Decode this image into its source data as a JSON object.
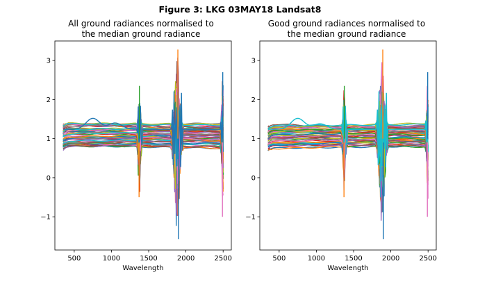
{
  "figure": {
    "title": "Figure 3: LKG 03MAY18  Landsat8"
  },
  "chart_data": [
    {
      "type": "line",
      "title": "All ground radiances normalised to\nthe median ground radiance",
      "xlabel": "Wavelength",
      "ylabel": "",
      "xlim": [
        240,
        2610
      ],
      "ylim": [
        -1.85,
        3.5
      ],
      "xticks": [
        500,
        1000,
        1500,
        2000,
        2500
      ],
      "yticks": [
        -1,
        0,
        1,
        2,
        3
      ],
      "grid": false,
      "legend": "none",
      "series_count": 60,
      "series_colors": [
        "#1f77b4",
        "#ff7f0e",
        "#2ca02c",
        "#d62728",
        "#9467bd",
        "#8c564b",
        "#e377c2",
        "#7f7f7f",
        "#bcbd22",
        "#17becf"
      ],
      "x_range": [
        350,
        2500
      ],
      "level_range": [
        0.78,
        1.38
      ],
      "highlight_bumps": [
        {
          "x": 750,
          "peak": 1.52,
          "color": "#1f77b4"
        },
        {
          "x": 1050,
          "peak": 1.4,
          "color": "#1f77b4"
        }
      ],
      "absorption_bands": [
        {
          "x": 1375,
          "spike_max": 2.35,
          "spike_min": -0.5
        },
        {
          "x": 1880,
          "spike_max": 3.28,
          "spike_min": -1.57
        },
        {
          "x": 2495,
          "spike_max": 2.7,
          "spike_min": -1.0
        }
      ]
    },
    {
      "type": "line",
      "title": "Good ground radiances normalised to\nthe median ground radiance",
      "xlabel": "Wavelength",
      "ylabel": "",
      "xlim": [
        240,
        2610
      ],
      "ylim": [
        -1.85,
        3.5
      ],
      "xticks": [
        500,
        1000,
        1500,
        2000,
        2500
      ],
      "yticks": [
        -1,
        0,
        1,
        2,
        3
      ],
      "grid": false,
      "legend": "none",
      "series_count": 50,
      "series_colors": [
        "#1f77b4",
        "#ff7f0e",
        "#2ca02c",
        "#d62728",
        "#9467bd",
        "#8c564b",
        "#e377c2",
        "#7f7f7f",
        "#bcbd22",
        "#17becf"
      ],
      "x_range": [
        350,
        2500
      ],
      "level_range": [
        0.8,
        1.35
      ],
      "highlight_bumps": [
        {
          "x": 750,
          "peak": 1.52,
          "color": "#17becf"
        },
        {
          "x": 1050,
          "peak": 1.38,
          "color": "#17becf"
        }
      ],
      "absorption_bands": [
        {
          "x": 1375,
          "spike_max": 2.35,
          "spike_min": -0.5
        },
        {
          "x": 1880,
          "spike_max": 3.28,
          "spike_min": -1.57
        },
        {
          "x": 2495,
          "spike_max": 2.7,
          "spike_min": -1.0
        }
      ]
    }
  ]
}
